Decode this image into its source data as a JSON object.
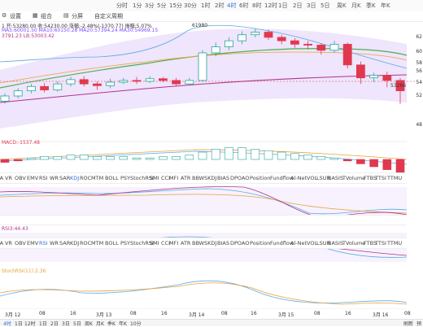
{
  "timeframes": [
    "分时",
    "1分",
    "3分",
    "5分",
    "15分",
    "30分",
    "1时",
    "2时",
    "4时",
    "6时",
    "8时",
    "12时",
    "1日",
    "2日",
    "3日",
    "5日",
    "周K",
    "月K",
    "季K",
    "年K"
  ],
  "timeframe_active": "4时",
  "toolbar": [
    "设置",
    "组合",
    "分屏",
    "自定义周期"
  ],
  "price_info": {
    "line1": "1     开:53280.00  收:54230.00  涨幅:-2.48%(-1370.77)  振幅:5.07%",
    "line2": "MA5:60001.50  MA10:60150.28  MA20:57394.24  MA30:54969.15",
    "line3": "3791.23   LB:53003.42"
  },
  "annotations": {
    "high": "61980",
    "low": "53266"
  },
  "y_labels": [
    "62",
    "60",
    "58",
    "56",
    "54",
    "52",
    "48"
  ],
  "indicators": [
    "MA",
    "VR",
    "OBV",
    "EMV",
    "RSI",
    "WR",
    "SAR",
    "KDJ",
    "ROC",
    "MTM",
    "BOLL",
    "PSY",
    "StochRSI",
    "SMI",
    "CCI",
    "MFI",
    "ATR",
    "BBW",
    "SKDJ",
    "BIAS",
    "DPO",
    "AO",
    "Position",
    "Fundflow",
    "Al-NetVOL",
    "LSUR",
    "BASIS",
    "TVolume",
    "FTBS",
    "TTSI",
    "TTMU"
  ],
  "indicator_rows": [
    {
      "label": "MACD",
      "values": "MACD:-1537.48"
    },
    {
      "label": "KDJ",
      "values": ""
    },
    {
      "label": "RSI",
      "values": "RSI3:44.43"
    },
    {
      "label": "StochRSI",
      "values": "StochRSI(11):2.36"
    }
  ],
  "x_labels": [
    "3月 12",
    "08",
    "16",
    "3月 13",
    "08",
    "16",
    "3月 14",
    "08",
    "16",
    "3月 15",
    "08",
    "16",
    "3月 16",
    "08"
  ],
  "bottom_tabs": [
    "4时",
    "1日",
    "12时",
    "1日",
    "2日",
    "3日",
    "5日",
    "周K",
    "月K",
    "季K",
    "年K",
    "10分"
  ],
  "bottom_right": [
    "刷新",
    "预"
  ],
  "colors": {
    "up": "#26a69a",
    "down": "#e0394f",
    "ma_green": "#4caf50",
    "ma_purple": "#b0348e",
    "ma_orange": "#e6a23c",
    "band": "#e8dcf8",
    "accent": "#2f6fde"
  },
  "candles": [
    {
      "o": 53.6,
      "c": 54.2,
      "h": 54.5,
      "l": 53.3
    },
    {
      "o": 54.2,
      "c": 54.8,
      "h": 55.1,
      "l": 53.9
    },
    {
      "o": 54.8,
      "c": 55.3,
      "h": 55.6,
      "l": 54.5
    },
    {
      "o": 55.3,
      "c": 54.9,
      "h": 55.7,
      "l": 54.6
    },
    {
      "o": 54.9,
      "c": 55.6,
      "h": 55.9,
      "l": 54.7
    },
    {
      "o": 55.6,
      "c": 56.1,
      "h": 56.4,
      "l": 55.3
    },
    {
      "o": 56.1,
      "c": 55.6,
      "h": 56.5,
      "l": 55.3
    },
    {
      "o": 55.6,
      "c": 55.4,
      "h": 55.9,
      "l": 54.9
    },
    {
      "o": 55.4,
      "c": 55.8,
      "h": 56.2,
      "l": 55.1
    },
    {
      "o": 55.8,
      "c": 56.0,
      "h": 56.3,
      "l": 55.6
    },
    {
      "o": 56.0,
      "c": 55.9,
      "h": 56.4,
      "l": 55.6
    },
    {
      "o": 55.9,
      "c": 56.2,
      "h": 56.5,
      "l": 55.7
    },
    {
      "o": 56.2,
      "c": 56.0,
      "h": 56.4,
      "l": 55.8
    },
    {
      "o": 56.0,
      "c": 55.6,
      "h": 56.3,
      "l": 55.3
    },
    {
      "o": 55.6,
      "c": 56.0,
      "h": 56.3,
      "l": 55.4
    },
    {
      "o": 56.0,
      "c": 59.2,
      "h": 59.5,
      "l": 55.9
    },
    {
      "o": 59.2,
      "c": 59.9,
      "h": 60.4,
      "l": 58.8
    },
    {
      "o": 59.9,
      "c": 60.6,
      "h": 61.0,
      "l": 59.5
    },
    {
      "o": 60.6,
      "c": 61.3,
      "h": 61.7,
      "l": 60.2
    },
    {
      "o": 61.3,
      "c": 61.6,
      "h": 61.98,
      "l": 61.0
    },
    {
      "o": 61.6,
      "c": 61.0,
      "h": 61.9,
      "l": 60.7
    },
    {
      "o": 61.0,
      "c": 60.6,
      "h": 61.3,
      "l": 60.2
    },
    {
      "o": 60.6,
      "c": 60.2,
      "h": 60.9,
      "l": 59.8
    },
    {
      "o": 60.2,
      "c": 60.1,
      "h": 60.6,
      "l": 59.6
    },
    {
      "o": 60.1,
      "c": 59.5,
      "h": 60.3,
      "l": 59.0
    },
    {
      "o": 59.5,
      "c": 60.2,
      "h": 60.6,
      "l": 59.2
    },
    {
      "o": 60.2,
      "c": 57.8,
      "h": 60.4,
      "l": 57.4
    },
    {
      "o": 57.8,
      "c": 56.3,
      "h": 58.2,
      "l": 55.6
    },
    {
      "o": 56.3,
      "c": 56.6,
      "h": 56.9,
      "l": 55.8
    },
    {
      "o": 56.6,
      "c": 56.0,
      "h": 57.0,
      "l": 55.2
    },
    {
      "o": 56.0,
      "c": 54.8,
      "h": 56.3,
      "l": 53.27
    }
  ]
}
